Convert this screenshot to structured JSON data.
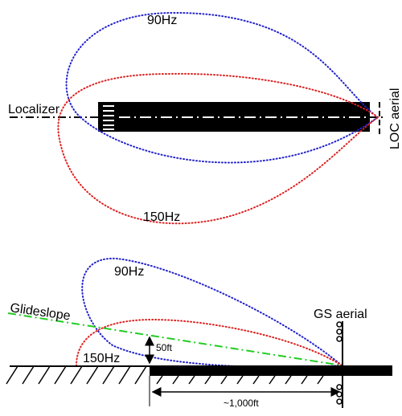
{
  "localizer": {
    "label": "Localizer",
    "lobe_90_label": "90Hz",
    "lobe_150_label": "150Hz",
    "aerial_label": "LOC aerial"
  },
  "glideslope": {
    "label": "Glideslope",
    "lobe_90_label": "90Hz",
    "lobe_150_label": "150Hz",
    "aerial_label": "GS aerial",
    "height_label": "50ft",
    "distance_label": "~1,000ft"
  },
  "colors": {
    "lobe_90": "#2222cc",
    "lobe_150": "#dd2222",
    "glideslope_line": "#22cc22",
    "runway": "#000000",
    "centerline": "#ffffff"
  }
}
